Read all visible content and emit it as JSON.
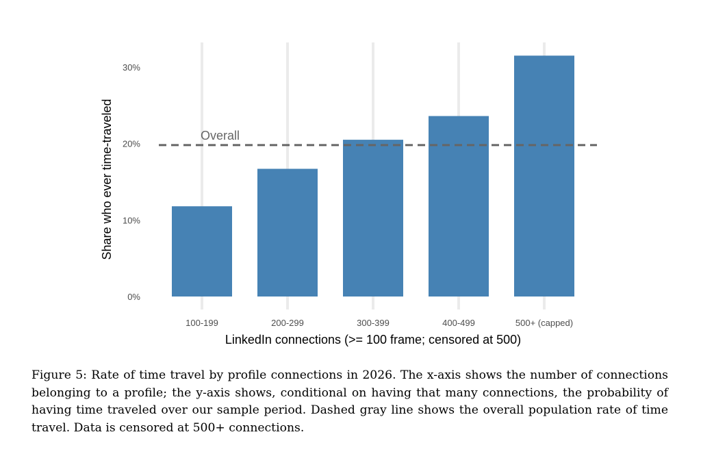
{
  "chart_data": {
    "type": "bar",
    "categories": [
      "100-199",
      "200-299",
      "300-399",
      "400-499",
      "500+ (capped)"
    ],
    "values": [
      11.8,
      16.7,
      20.5,
      23.6,
      31.5
    ],
    "xlabel": "LinkedIn connections (>= 100 frame; censored at 500)",
    "ylabel": "Share who ever time-traveled",
    "ylim": [
      0,
      32
    ],
    "yticks": [
      0,
      10,
      20,
      30
    ],
    "ytick_labels": [
      "0%",
      "10%",
      "20%",
      "30%"
    ],
    "reference_line": {
      "value": 19.8,
      "label": "Overall",
      "style": "dashed",
      "color": "#666666"
    },
    "bar_color": "#4682b4",
    "grid": "vertical-major",
    "legend": "none"
  },
  "caption": "Figure 5: Rate of time travel by profile connections in 2026. The x-axis shows the number of connections belonging to a profile; the y-axis shows, conditional on having that many connections, the probability of having time traveled over our sample period. Dashed gray line shows the overall population rate of time travel. Data is censored at 500+ connections."
}
